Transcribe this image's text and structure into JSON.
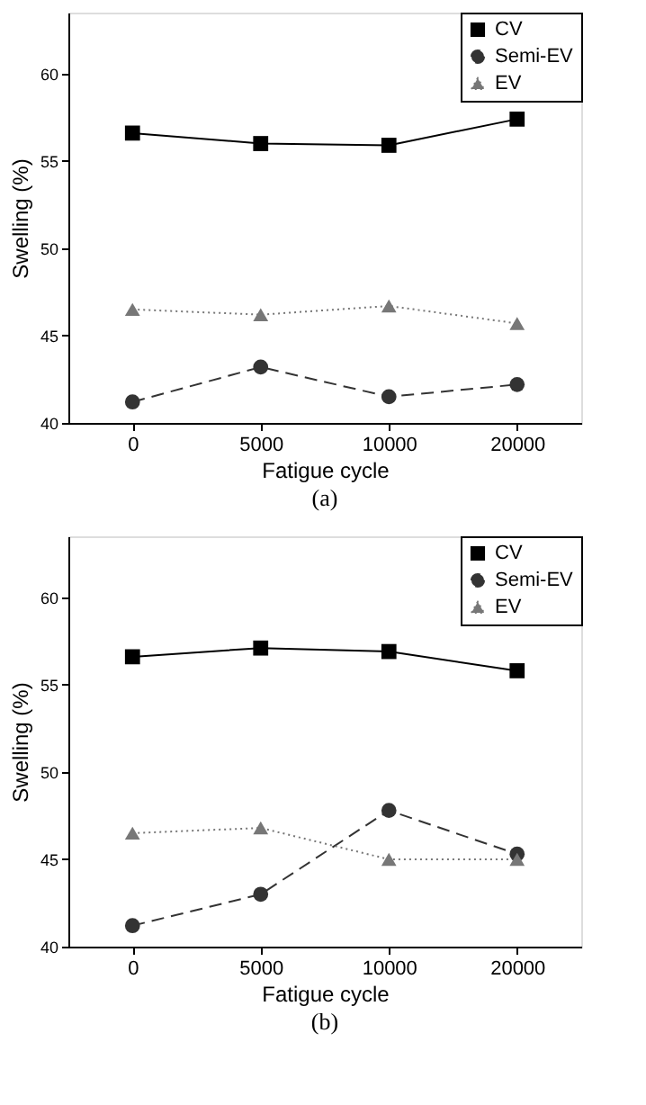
{
  "chart_data": [
    {
      "type": "line",
      "title": "(a)",
      "xlabel": "Fatigue cycle",
      "ylabel": "Swelling (%)",
      "categories": [
        "0",
        "5000",
        "10000",
        "20000"
      ],
      "ylim": [
        40,
        63.5
      ],
      "yticks": [
        40,
        45,
        50,
        55,
        60
      ],
      "grid": false,
      "legend": "top right",
      "series": [
        {
          "name": "CV",
          "color": "#000000",
          "marker": "square",
          "line_style": "solid",
          "values": [
            56.6,
            56.0,
            55.9,
            57.4
          ]
        },
        {
          "name": "Semi-EV",
          "color": "#333333",
          "marker": "circle",
          "line_style": "dashed",
          "values": [
            41.2,
            43.2,
            41.5,
            42.2
          ]
        },
        {
          "name": "EV",
          "color": "#777777",
          "marker": "triangle",
          "line_style": "dotted",
          "values": [
            46.5,
            46.2,
            46.7,
            45.7
          ]
        }
      ]
    },
    {
      "type": "line",
      "title": "(b)",
      "xlabel": "Fatigue cycle",
      "ylabel": "Swelling (%)",
      "categories": [
        "0",
        "5000",
        "10000",
        "20000"
      ],
      "ylim": [
        40,
        63.5
      ],
      "yticks": [
        40,
        45,
        50,
        55,
        60
      ],
      "grid": false,
      "legend": "top right",
      "series": [
        {
          "name": "CV",
          "color": "#000000",
          "marker": "square",
          "line_style": "solid",
          "values": [
            56.6,
            57.1,
            56.9,
            55.8
          ]
        },
        {
          "name": "Semi-EV",
          "color": "#333333",
          "marker": "circle",
          "line_style": "dashed",
          "values": [
            41.2,
            43.0,
            47.8,
            45.3
          ]
        },
        {
          "name": "EV",
          "color": "#777777",
          "marker": "triangle",
          "line_style": "dotted",
          "values": [
            46.5,
            46.8,
            45.0,
            45.0
          ]
        }
      ]
    }
  ]
}
